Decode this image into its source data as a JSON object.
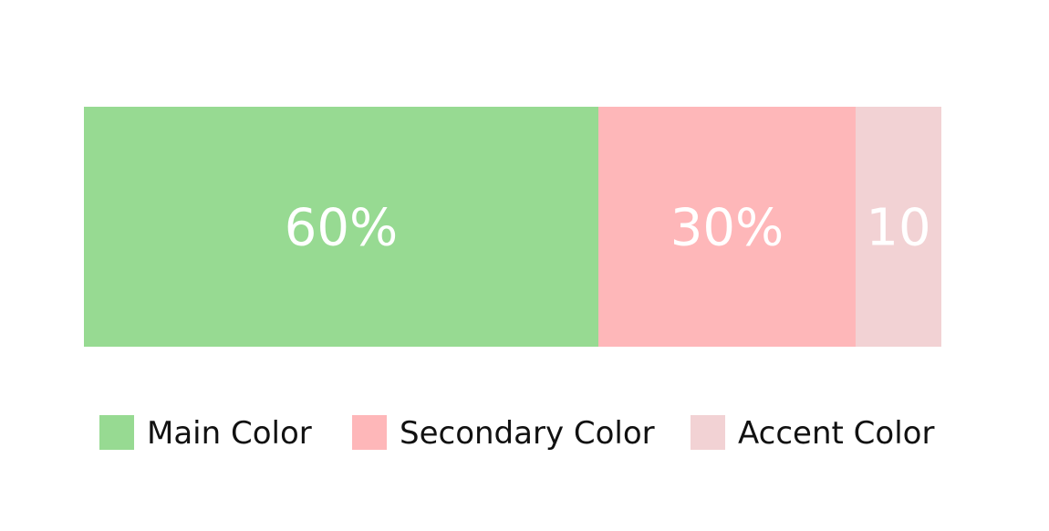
{
  "chart_data": {
    "type": "bar",
    "orientation": "horizontal-stacked",
    "categories": [
      ""
    ],
    "series": [
      {
        "name": "Main Color",
        "values": [
          60
        ],
        "color": "#97da92",
        "label": "60%"
      },
      {
        "name": "Secondary Color",
        "values": [
          30
        ],
        "color": "#feb7b9",
        "label": "30%"
      },
      {
        "name": "Accent Color",
        "values": [
          10
        ],
        "color": "#f2d2d4",
        "label": "10"
      }
    ],
    "xlim": [
      0,
      100
    ],
    "grid": false,
    "legend": "bottom",
    "title": "",
    "xlabel": "",
    "ylabel": ""
  }
}
